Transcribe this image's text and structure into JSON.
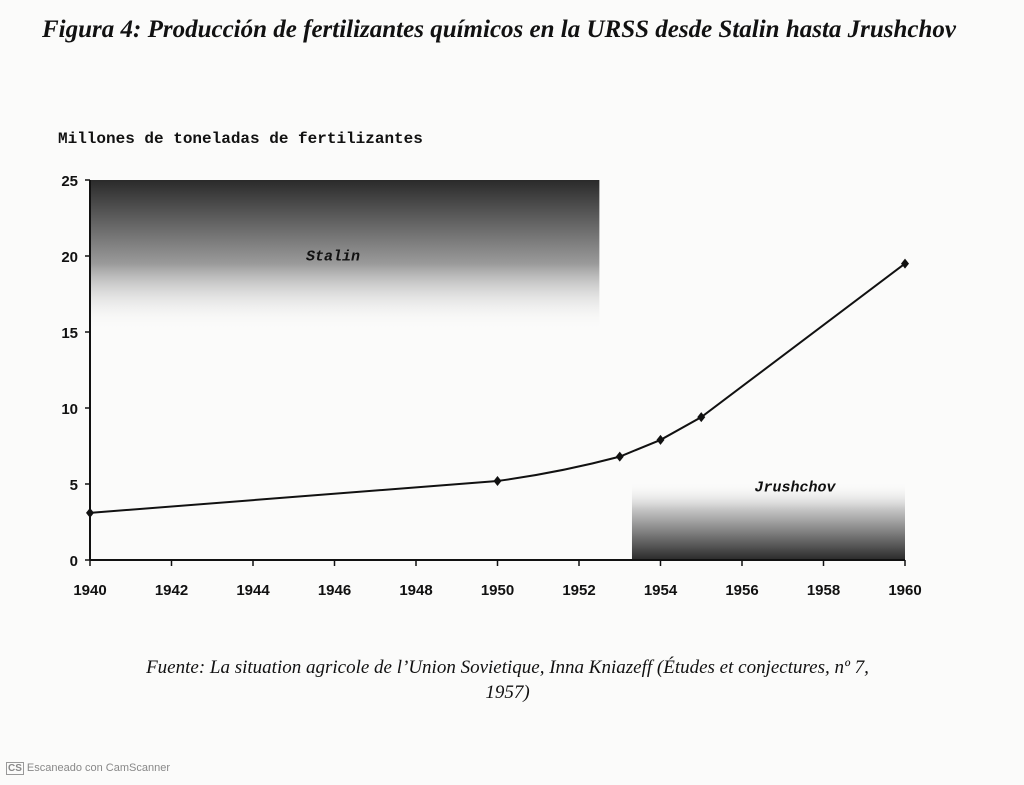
{
  "title": "Figura 4: Producción de fertilizantes químicos en la URSS desde Stalin hasta Jrushchov",
  "source": {
    "line1": "Fuente: La situation agricole de l’Union Sovietique, Inna Kniazeff (Études et conjectures, nº 7,",
    "line2": "1957)"
  },
  "watermark": {
    "logo": "CS",
    "text": "Escaneado con CamScanner"
  },
  "chart_data": {
    "type": "line",
    "title": "Figura 4: Producción de fertilizantes químicos en la URSS desde Stalin hasta Jrushchov",
    "xlabel": "",
    "ylabel": "Millones de toneladas de fertilizantes",
    "xlim": [
      1940,
      1960
    ],
    "ylim": [
      0,
      25
    ],
    "xticks": [
      1940,
      1942,
      1944,
      1946,
      1948,
      1950,
      1952,
      1954,
      1956,
      1958,
      1960
    ],
    "yticks": [
      0,
      5,
      10,
      15,
      20,
      25
    ],
    "series": [
      {
        "name": "Producción",
        "x": [
          1940,
          1950,
          1953,
          1954,
          1955,
          1960
        ],
        "y": [
          3.1,
          5.2,
          6.8,
          7.9,
          9.4,
          19.5
        ]
      }
    ],
    "annotations": [
      {
        "text": "Stalin",
        "period": [
          1940,
          1952.5
        ]
      },
      {
        "text": "Jrushchov",
        "period": [
          1953.3,
          1960
        ]
      }
    ],
    "grid": false,
    "colors": {
      "line": "#111111",
      "shade_dark": "#2a2a2a"
    }
  }
}
